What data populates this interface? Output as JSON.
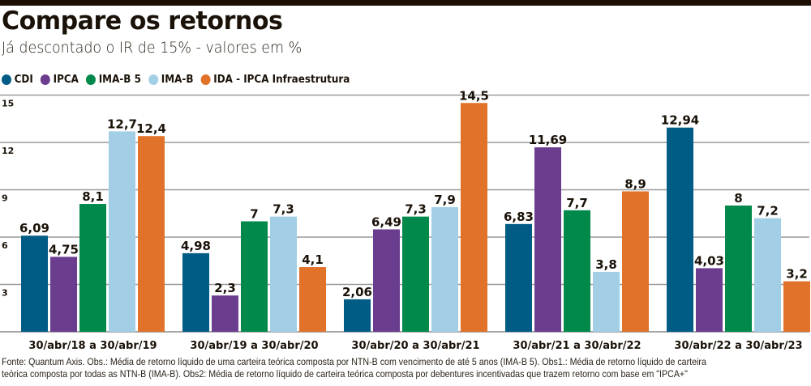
{
  "header": {
    "title": "Compare os retornos",
    "subtitle": "Já descontado o IR de 15% - valores em %"
  },
  "footer": {
    "line1": "Fonte: Quantum Axis. Obs.: Média de retorno líquido de uma carteira teórica composta por NTN-B com vencimento de até 5 anos (IMA-B 5). Obs1.: Média de retorno líquido de carteira",
    "line2": "teórica composta por todas as NTN-B (IMA-B). Obs2: Média de retorno líquido de carteira teórica composta por debentures incentivadas que trazem retorno com base em \"IPCA+\""
  },
  "chart_data": {
    "type": "bar",
    "title": "Compare os retornos",
    "subtitle": "Já descontado o IR de 15% - valores em %",
    "xlabel": "",
    "ylabel": "",
    "ylim": [
      0,
      15
    ],
    "yticks": [
      3,
      6,
      9,
      12,
      15
    ],
    "ytick_labels": [
      "3",
      "6",
      "9",
      "12",
      "15"
    ],
    "grid": true,
    "legend_position": "top-left",
    "categories": [
      "30/abr/18 a 30/abr/19",
      "30/abr/19 a 30/abr/20",
      "30/abr/20 a 30/abr/21",
      "30/abr/21 a 30/abr/22",
      "30/abr/22 a 30/abr/23"
    ],
    "series": [
      {
        "name": "CDI",
        "color": "#005b85",
        "values": [
          6.09,
          4.98,
          2.06,
          6.83,
          12.94
        ],
        "labels": [
          "6,09",
          "4,98",
          "2,06",
          "6,83",
          "12,94"
        ]
      },
      {
        "name": "IPCA",
        "color": "#6a3d8e",
        "values": [
          4.75,
          2.3,
          6.49,
          11.69,
          4.03
        ],
        "labels": [
          "4,75",
          "2,3",
          "6,49",
          "11,69",
          "4,03"
        ]
      },
      {
        "name": "IMA-B 5",
        "color": "#00894a",
        "values": [
          8.1,
          7,
          7.3,
          7.7,
          8
        ],
        "labels": [
          "8,1",
          "7",
          "7,3",
          "7,7",
          "8"
        ]
      },
      {
        "name": "IMA-B",
        "color": "#a3cfe6",
        "values": [
          12.7,
          7.3,
          7.9,
          3.8,
          7.2
        ],
        "labels": [
          "12,7",
          "7,3",
          "7,9",
          "3,8",
          "7,2"
        ]
      },
      {
        "name": "IDA - IPCA Infraestrutura",
        "color": "#e0722a",
        "values": [
          12.4,
          4.1,
          14.5,
          8.9,
          3.2
        ],
        "labels": [
          "12,4",
          "4,1",
          "14,5",
          "8,9",
          "3,2"
        ]
      }
    ]
  }
}
